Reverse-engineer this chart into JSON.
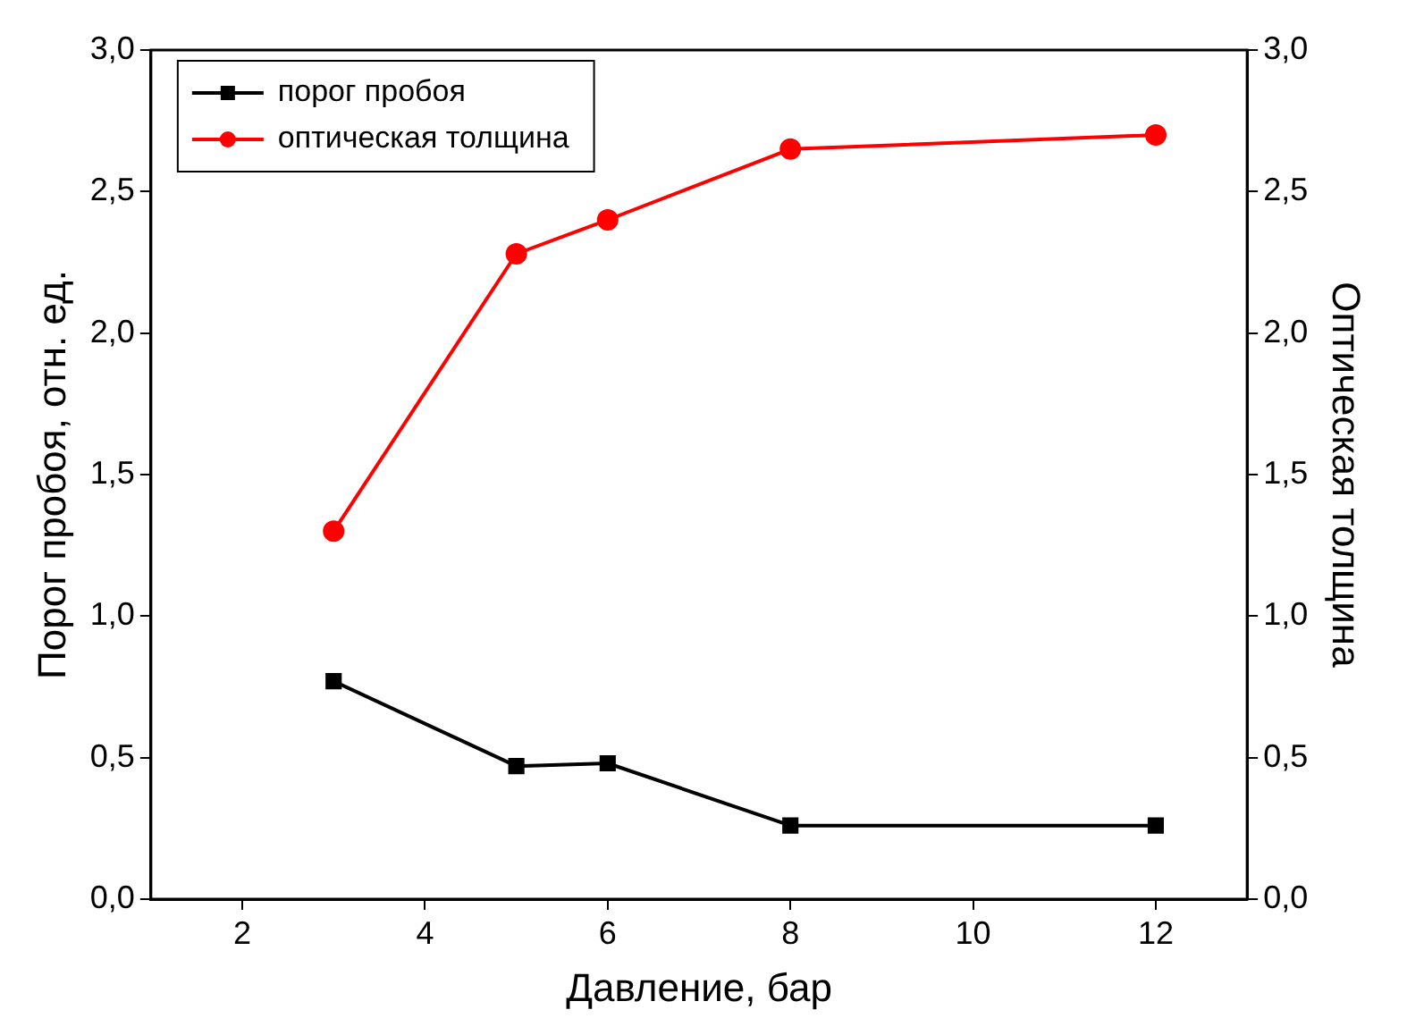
{
  "chart_data": {
    "type": "line",
    "xlabel": "Давление, бар",
    "ylabel": "Порог пробоя, отн. ед.",
    "y2label": "Оптическая толщина",
    "x": [
      3,
      5,
      6,
      8,
      12
    ],
    "series": [
      {
        "name": "порог пробоя",
        "color": "#000000",
        "values": [
          0.77,
          0.47,
          0.48,
          0.26,
          0.26
        ],
        "marker": "square"
      },
      {
        "name": "оптическая толщина",
        "color": "#ff0000",
        "values": [
          1.3,
          2.28,
          2.4,
          2.65,
          2.7
        ],
        "marker": "circle",
        "axis": "y2"
      }
    ],
    "xlim": [
      1,
      13
    ],
    "xticks": [
      2,
      4,
      6,
      8,
      10,
      12
    ],
    "ylim": [
      0,
      3
    ],
    "yticks": [
      {
        "value": 0,
        "label": "0,0"
      },
      {
        "value": 0.5,
        "label": "0,5"
      },
      {
        "value": 1,
        "label": "1,0"
      },
      {
        "value": 1.5,
        "label": "1,5"
      },
      {
        "value": 2,
        "label": "2,0"
      },
      {
        "value": 2.5,
        "label": "2,5"
      },
      {
        "value": 3,
        "label": "3,0"
      }
    ],
    "y2lim": [
      0,
      3
    ],
    "y2ticks": [
      {
        "value": 0,
        "label": "0,0"
      },
      {
        "value": 0.5,
        "label": "0,5"
      },
      {
        "value": 1,
        "label": "1,0"
      },
      {
        "value": 1.5,
        "label": "1,5"
      },
      {
        "value": 2,
        "label": "2,0"
      },
      {
        "value": 2.5,
        "label": "2,5"
      },
      {
        "value": 3,
        "label": "3,0"
      }
    ],
    "grid": false,
    "legend": "top left",
    "line_style": "solid"
  }
}
